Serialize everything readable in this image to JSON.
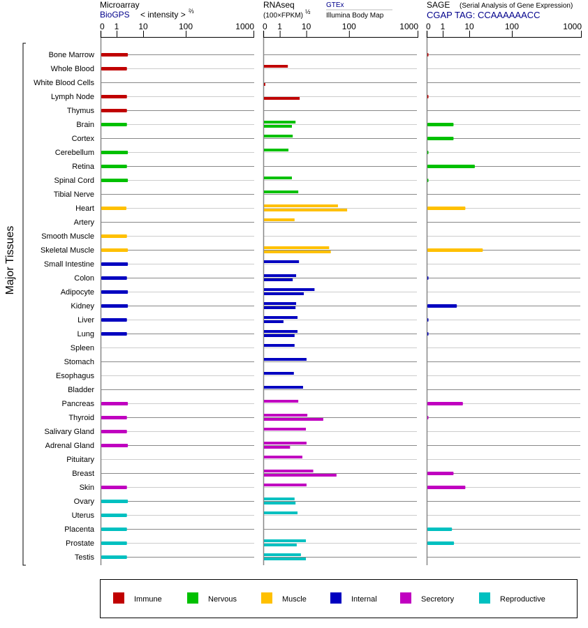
{
  "headers": {
    "microarray": {
      "title": "Microarray",
      "source": "BioGPS",
      "unit": "< intensity >",
      "exponent": "⅔"
    },
    "rnaseq": {
      "title": "RNAseq",
      "unit": "(100×FPKM)",
      "exponent": "½",
      "source_top": "GTEx",
      "source_bottom": "Illumina Body Map"
    },
    "sage": {
      "title": "SAGE",
      "subtitle": "(Serial Analysis of Gene Expression)",
      "tag": "CGAP TAG: CCAAAAAACC"
    }
  },
  "colors": {
    "Immune": "#c00000",
    "Nervous": "#00c000",
    "Muscle": "#ffc000",
    "Internal": "#0000c0",
    "Secretory": "#c000c0",
    "Reproductive": "#00c0c0",
    "source_link": "#00008b"
  },
  "chart_data": {
    "type": "bar",
    "orientation": "horizontal",
    "axis_label": "Major Tissues",
    "tick_labels": [
      "0",
      "1",
      "10",
      "100",
      "1000"
    ],
    "xlim": [
      0,
      1000
    ],
    "scale": "compressed log (0-1 linear, then log decades)",
    "categories": [
      "Bone Marrow",
      "Whole Blood",
      "White Blood Cells",
      "Lymph Node",
      "Thymus",
      "Brain",
      "Cortex",
      "Cerebellum",
      "Retina",
      "Spinal Cord",
      "Tibial Nerve",
      "Heart",
      "Artery",
      "Smooth Muscle",
      "Skeletal Muscle",
      "Small Intestine",
      "Colon",
      "Adipocyte",
      "Kidney",
      "Liver",
      "Lung",
      "Spleen",
      "Stomach",
      "Esophagus",
      "Bladder",
      "Pancreas",
      "Thyroid",
      "Salivary Gland",
      "Adrenal Gland",
      "Pituitary",
      "Breast",
      "Skin",
      "Ovary",
      "Uterus",
      "Placenta",
      "Prostate",
      "Testis"
    ],
    "groups": [
      {
        "name": "Immune",
        "count": 5
      },
      {
        "name": "Nervous",
        "count": 6
      },
      {
        "name": "Muscle",
        "count": 4
      },
      {
        "name": "Internal",
        "count": 10
      },
      {
        "name": "Secretory",
        "count": 7
      },
      {
        "name": "Reproductive",
        "count": 5
      }
    ],
    "series": [
      {
        "name": "Microarray",
        "panel": 0,
        "values": [
          2.5,
          2.3,
          null,
          2.3,
          2.3,
          2.3,
          null,
          2.5,
          2.3,
          2.5,
          null,
          2.2,
          null,
          2.3,
          2.5,
          2.5,
          2.3,
          2.5,
          2.5,
          2.3,
          2.3,
          null,
          null,
          null,
          null,
          2.5,
          2.3,
          2.3,
          2.5,
          null,
          null,
          2.3,
          2.5,
          2.3,
          2.3,
          2.3,
          2.3
        ]
      },
      {
        "name": "GTEx",
        "panel": 1,
        "values": [
          null,
          1.9,
          null,
          null,
          null,
          3.7,
          2.9,
          2.0,
          null,
          2.7,
          4.7,
          53,
          3.4,
          null,
          33,
          5.0,
          3.9,
          15,
          3.9,
          4.4,
          4.4,
          3.4,
          9.6,
          3.2,
          7.1,
          4.7,
          10.2,
          9.1,
          9.6,
          6.7,
          14,
          9.6,
          3.4,
          4.4,
          null,
          9.1,
          5.9
        ]
      },
      {
        "name": "Illumina Body Map",
        "panel": 1,
        "values": [
          null,
          null,
          0.08,
          5.3,
          null,
          2.7,
          null,
          null,
          null,
          null,
          null,
          87,
          null,
          null,
          36,
          null,
          2.9,
          7.6,
          3.7,
          1.3,
          3.4,
          null,
          null,
          null,
          null,
          null,
          24,
          null,
          2.3,
          null,
          49,
          null,
          3.7,
          null,
          null,
          4.1,
          9.1
        ]
      },
      {
        "name": "SAGE",
        "panel": 2,
        "values": [
          0.05,
          null,
          null,
          0.05,
          null,
          2.4,
          2.4,
          0.05,
          13,
          0.05,
          null,
          6.7,
          null,
          null,
          20,
          null,
          0.05,
          null,
          3.2,
          0.05,
          0.05,
          null,
          null,
          null,
          null,
          5.4,
          0.05,
          null,
          null,
          null,
          2.4,
          6.7,
          null,
          null,
          2.1,
          2.5,
          null
        ]
      }
    ]
  },
  "legend": {
    "items": [
      {
        "label": "Immune",
        "color": "#c00000"
      },
      {
        "label": "Nervous",
        "color": "#00c000"
      },
      {
        "label": "Muscle",
        "color": "#ffc000"
      },
      {
        "label": "Internal",
        "color": "#0000c0"
      },
      {
        "label": "Secretory",
        "color": "#c000c0"
      },
      {
        "label": "Reproductive",
        "color": "#00c0c0"
      }
    ]
  }
}
